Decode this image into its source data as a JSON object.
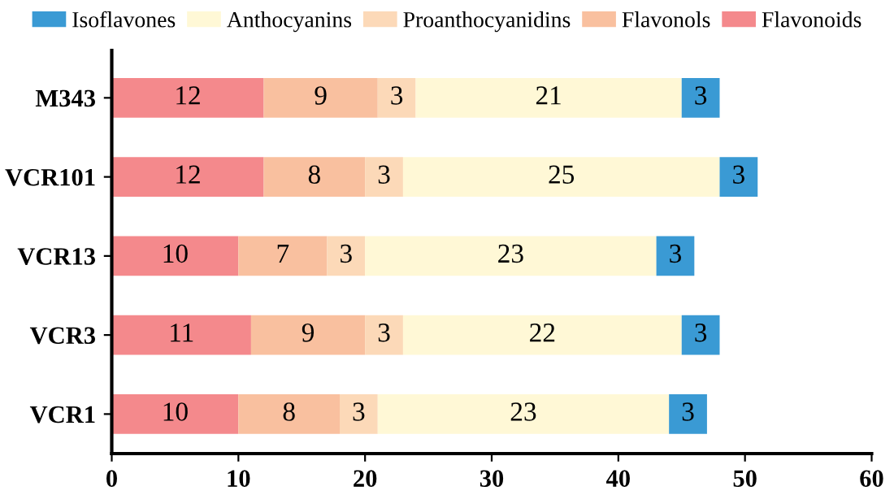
{
  "chart_data": {
    "type": "bar",
    "orientation": "horizontal",
    "stacked": true,
    "data_labels": true,
    "legend": "top",
    "grid": false,
    "categories": [
      "M343",
      "VCR101",
      "VCR13",
      "VCR3",
      "VCR1"
    ],
    "series": [
      {
        "name": "Flavonoids",
        "color": "#f4898c",
        "values": [
          12,
          12,
          10,
          11,
          10
        ]
      },
      {
        "name": "Flavonols",
        "color": "#f9c09f",
        "values": [
          9,
          8,
          7,
          9,
          8
        ]
      },
      {
        "name": "Proanthocyanidins",
        "color": "#fcd9b8",
        "values": [
          3,
          3,
          3,
          3,
          3
        ]
      },
      {
        "name": "Anthocyanins",
        "color": "#fff8d6",
        "values": [
          21,
          25,
          23,
          22,
          23
        ]
      },
      {
        "name": "Isoflavones",
        "color": "#3a9ad4",
        "values": [
          3,
          3,
          3,
          3,
          3
        ]
      }
    ],
    "xlim": [
      0,
      60
    ],
    "xticks": [
      0,
      10,
      20,
      30,
      40,
      50,
      60
    ]
  }
}
